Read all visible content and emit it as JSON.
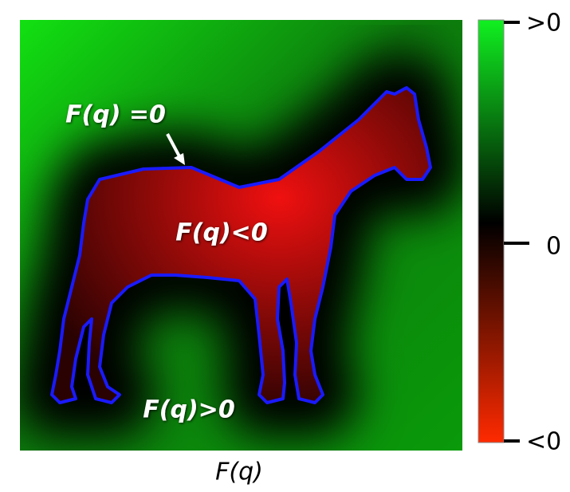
{
  "annotations": {
    "zero_level": "F(q) =0",
    "inside": "F(q)<0",
    "outside": "F(q)>0"
  },
  "caption": "F(q)",
  "colorbar": {
    "top_label": ">0",
    "middle_label": "0",
    "bottom_label": "<0"
  }
}
